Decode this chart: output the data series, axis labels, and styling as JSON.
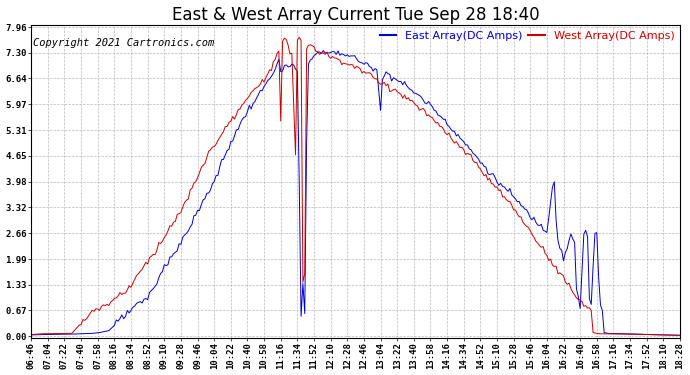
{
  "title": "East & West Array Current Tue Sep 28 18:40",
  "copyright": "Copyright 2021 Cartronics.com",
  "legend_east": "East Array(DC Amps)",
  "legend_west": "West Array(DC Amps)",
  "east_color": "#0000cc",
  "west_color": "#cc0000",
  "background_color": "#ffffff",
  "grid_color": "#bbbbbb",
  "yticks": [
    0.0,
    0.67,
    1.33,
    1.99,
    2.66,
    3.32,
    3.98,
    4.65,
    5.31,
    5.97,
    6.64,
    7.3,
    7.96
  ],
  "ymax": 7.96,
  "ymin": 0.0,
  "title_fontsize": 12,
  "legend_fontsize": 8,
  "axis_fontsize": 6.5,
  "copyright_fontsize": 7.5
}
